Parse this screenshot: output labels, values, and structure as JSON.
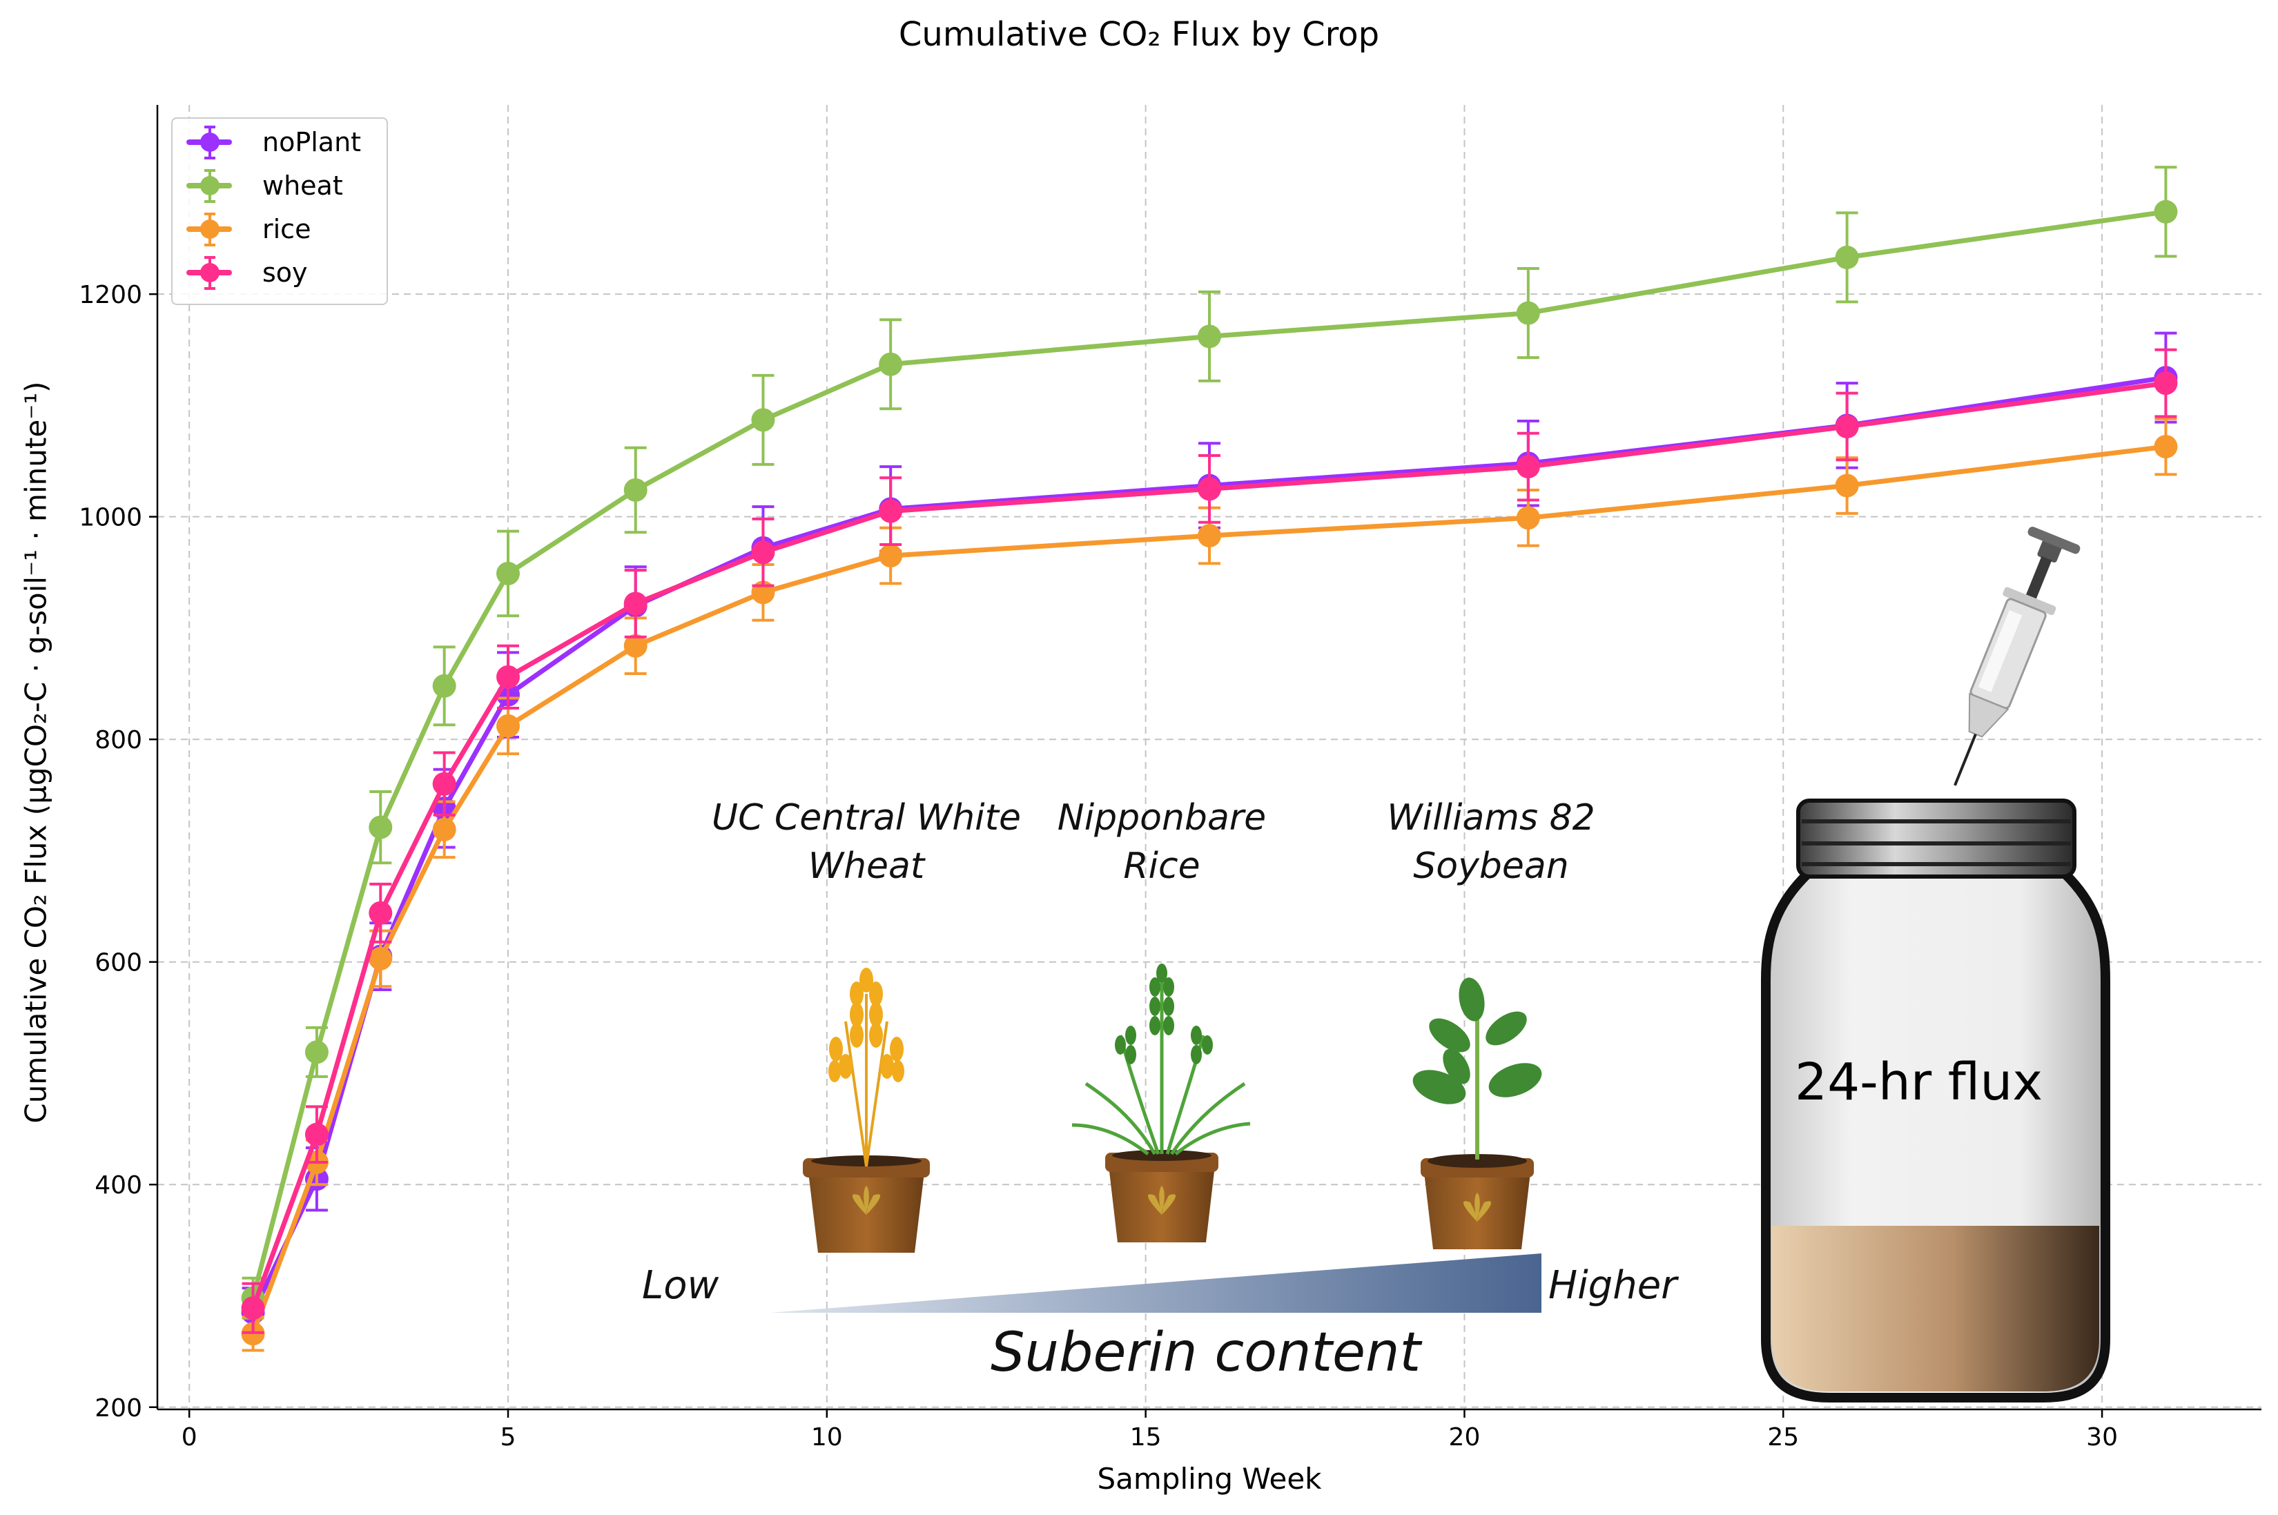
{
  "chart_data": {
    "type": "line",
    "title": "Cumulative CO₂ Flux by Crop",
    "xlabel": "Sampling Week",
    "ylabel": "Cumulative CO₂ Flux (μgCO₂-C · g-soil⁻¹ · minute⁻¹)",
    "xlim": [
      -0.5,
      32.5
    ],
    "ylim": [
      198,
      1370
    ],
    "xticks": [
      0,
      5,
      10,
      15,
      20,
      25,
      30
    ],
    "yticks": [
      200,
      400,
      600,
      800,
      1000,
      1200
    ],
    "grid": true,
    "legend_position": "upper-left",
    "x": [
      1,
      2,
      3,
      4,
      5,
      7,
      9,
      11,
      16,
      21,
      26,
      31
    ],
    "series": [
      {
        "name": "noPlant",
        "color": "#9b30ff",
        "values": [
          285,
          405,
          605,
          738,
          840,
          920,
          972,
          1007,
          1028,
          1048,
          1082,
          1125
        ],
        "errors": [
          22,
          28,
          30,
          35,
          38,
          35,
          37,
          38,
          38,
          38,
          38,
          40
        ]
      },
      {
        "name": "wheat",
        "color": "#8fc154",
        "values": [
          298,
          519,
          721,
          848,
          949,
          1024,
          1087,
          1137,
          1162,
          1183,
          1233,
          1274
        ],
        "errors": [
          18,
          22,
          32,
          35,
          38,
          38,
          40,
          40,
          40,
          40,
          40,
          40
        ]
      },
      {
        "name": "rice",
        "color": "#f7982d",
        "values": [
          266,
          420,
          603,
          719,
          812,
          884,
          932,
          965,
          983,
          999,
          1028,
          1063
        ],
        "errors": [
          15,
          20,
          25,
          25,
          25,
          25,
          25,
          25,
          25,
          25,
          25,
          25
        ]
      },
      {
        "name": "soy",
        "color": "#ff2e8c",
        "values": [
          289,
          445,
          644,
          760,
          856,
          922,
          968,
          1005,
          1025,
          1045,
          1081,
          1120
        ],
        "errors": [
          22,
          25,
          26,
          28,
          28,
          30,
          30,
          30,
          30,
          30,
          30,
          30
        ]
      }
    ]
  },
  "annotations": {
    "crops": [
      {
        "line1": "UC Central White",
        "line2": "Wheat",
        "icon": "wheat-plant-pot-icon"
      },
      {
        "line1": "Nipponbare",
        "line2": "Rice",
        "icon": "rice-plant-pot-icon"
      },
      {
        "line1": "Williams 82",
        "line2": "Soybean",
        "icon": "soybean-plant-pot-icon"
      }
    ],
    "suberin_low": "Low",
    "suberin_high": "Higher",
    "suberin_title": "Suberin content",
    "jar_label": "24-hr flux",
    "gradient_light": "#dde4ee",
    "gradient_dark": "#4a6590"
  }
}
